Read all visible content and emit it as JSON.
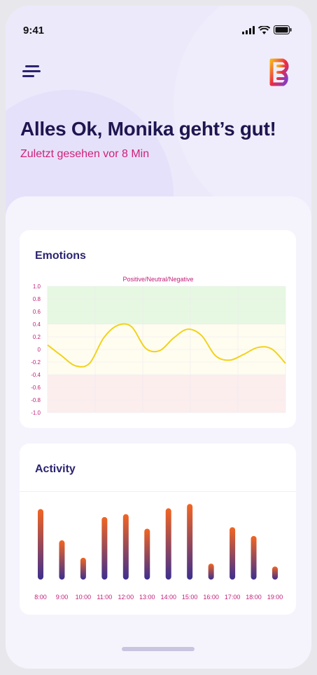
{
  "status_bar": {
    "time": "9:41"
  },
  "header": {
    "menu_icon": "menu-lines-icon",
    "logo_icon": "brand-logo-icon",
    "headline": "Alles Ok, Monika geht’s gut!",
    "last_seen": "Zuletzt gesehen vor 8 Min"
  },
  "colors": {
    "accent": "#d0207a",
    "title": "#1e1650",
    "bar_top": "#f26522",
    "bar_bottom": "#3d2f8f",
    "line": "#f2d21a"
  },
  "emotions": {
    "title": "Emotions",
    "chart_data": {
      "type": "line",
      "title": "Positive/Neutral/Negative",
      "ylim": [
        -1.0,
        1.0
      ],
      "y_ticks": [
        "1.0",
        "0.8",
        "0.6",
        "0.4",
        "0.2",
        "0",
        "-0.2",
        "-0.4",
        "-0.6",
        "-0.8",
        "-1.0"
      ],
      "zones": [
        {
          "name": "positive",
          "from": 0.4,
          "to": 1.0,
          "color": "#e6f8e1"
        },
        {
          "name": "neutral",
          "from": -0.4,
          "to": 0.4,
          "color": "#fffdf0"
        },
        {
          "name": "negative",
          "from": -1.0,
          "to": -0.4,
          "color": "#fdeeee"
        }
      ],
      "grid": true,
      "series": [
        {
          "values": [
            0.07,
            -0.1,
            -0.26,
            -0.22,
            0.18,
            0.38,
            0.36,
            0.02,
            -0.02,
            0.18,
            0.32,
            0.22,
            -0.1,
            -0.17,
            -0.08,
            0.03,
            0.01,
            -0.22
          ]
        }
      ]
    }
  },
  "activity": {
    "title": "Activity",
    "chart_data": {
      "type": "bar",
      "categories": [
        "8:00",
        "9:00",
        "10:00",
        "11:00",
        "12:00",
        "13:00",
        "14:00",
        "15:00",
        "16:00",
        "17:00",
        "18:00",
        "19:00"
      ],
      "values": [
        97,
        54,
        30,
        86,
        90,
        70,
        98,
        104,
        22,
        72,
        60,
        18
      ],
      "ylim": [
        0,
        110
      ]
    }
  }
}
